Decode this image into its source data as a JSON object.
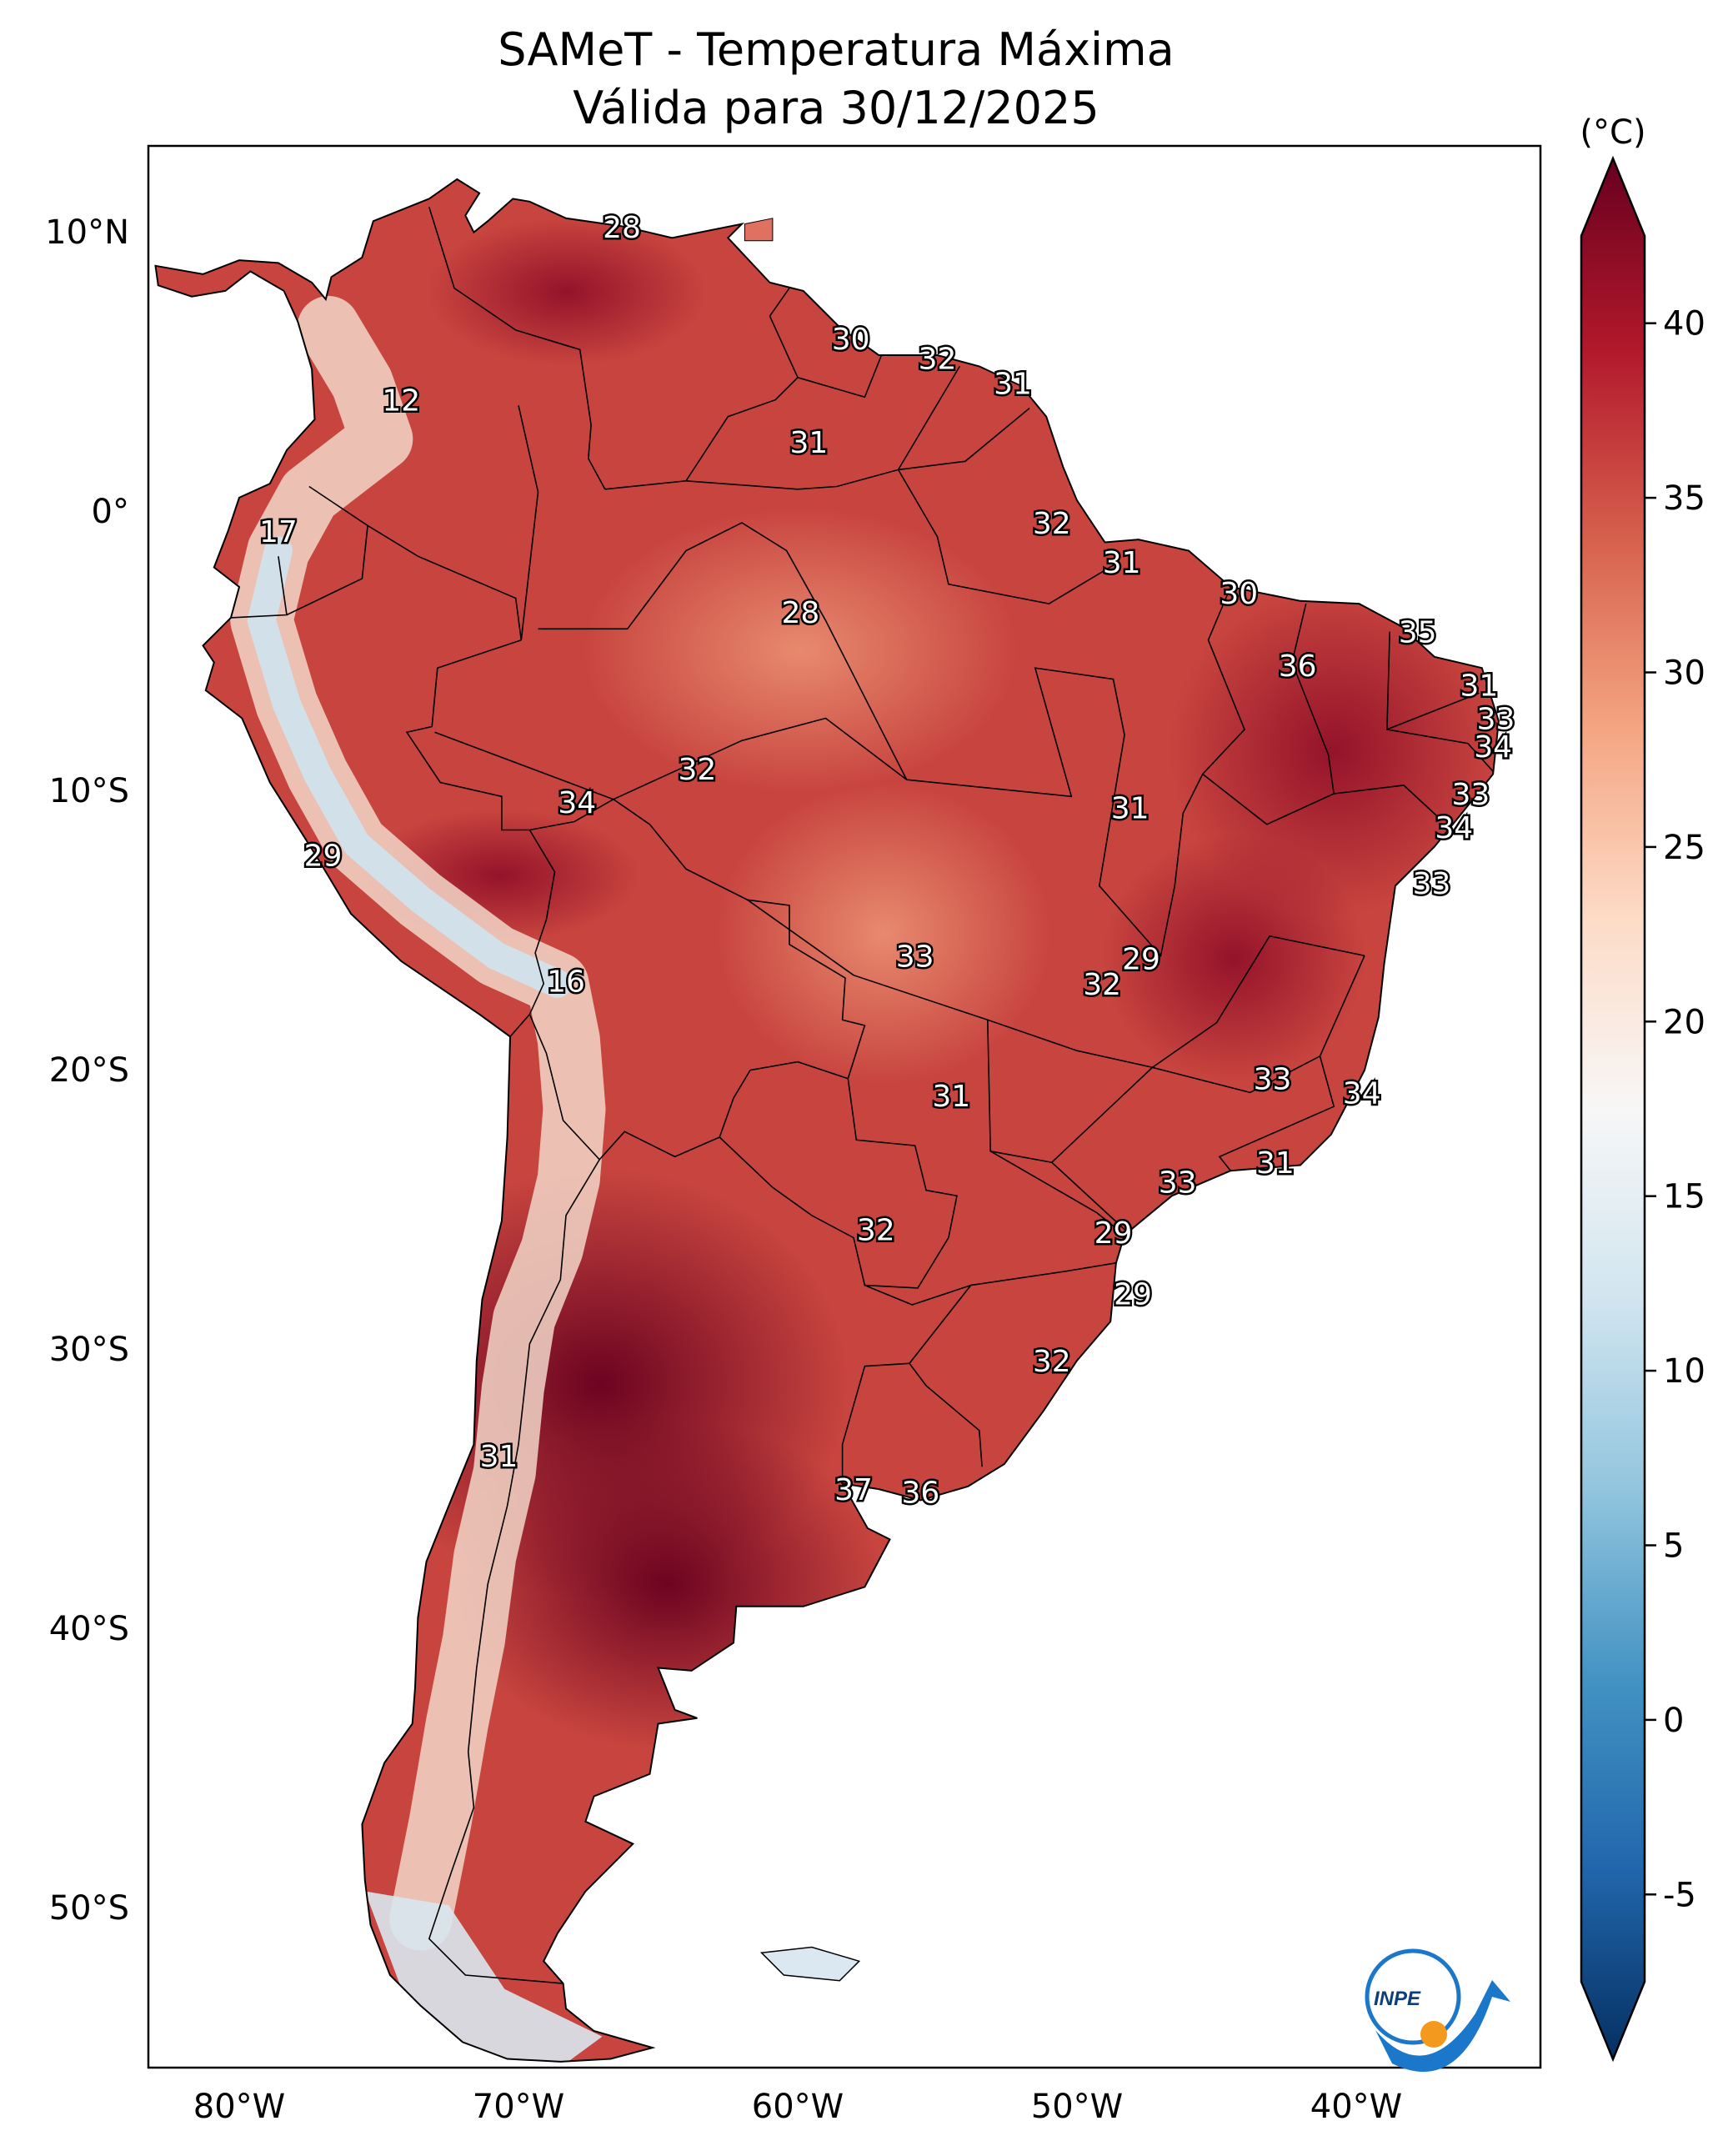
{
  "title": {
    "line1": "SAMeT - Temperatura Máxima",
    "line2": "Válida para 30/12/2025"
  },
  "colorbar": {
    "unit": "(°C)",
    "ticks": [
      "40",
      "35",
      "30",
      "25",
      "20",
      "15",
      "10",
      "5",
      "0",
      "-5"
    ],
    "colors": [
      "#053061",
      "#2166ac",
      "#4393c3",
      "#92c5de",
      "#d1e5f0",
      "#f7f7f7",
      "#fddbc7",
      "#f4a582",
      "#d6604d",
      "#b2182b",
      "#67001f"
    ]
  },
  "axes": {
    "lat": [
      "10°N",
      "0°",
      "10°S",
      "20°S",
      "30°S",
      "40°S",
      "50°S"
    ],
    "lon": [
      "80°W",
      "70°W",
      "60°W",
      "50°W",
      "40°W"
    ]
  },
  "labels": [
    {
      "t": "28",
      "lon": -66.3,
      "lat": 10.6
    },
    {
      "t": "12",
      "lon": -74.2,
      "lat": 4.4
    },
    {
      "t": "30",
      "lon": -58.1,
      "lat": 6.6
    },
    {
      "t": "32",
      "lon": -55.0,
      "lat": 5.9
    },
    {
      "t": "31",
      "lon": -52.3,
      "lat": 5.0
    },
    {
      "t": "31",
      "lon": -59.6,
      "lat": 2.9
    },
    {
      "t": "17",
      "lon": -78.6,
      "lat": -0.3
    },
    {
      "t": "32",
      "lon": -50.9,
      "lat": 0.0
    },
    {
      "t": "31",
      "lon": -48.4,
      "lat": -1.4
    },
    {
      "t": "30",
      "lon": -44.2,
      "lat": -2.5
    },
    {
      "t": "28",
      "lon": -59.9,
      "lat": -3.2
    },
    {
      "t": "35",
      "lon": -37.8,
      "lat": -3.9
    },
    {
      "t": "36",
      "lon": -42.1,
      "lat": -5.1
    },
    {
      "t": "31",
      "lon": -35.6,
      "lat": -5.8
    },
    {
      "t": "33",
      "lon": -35.0,
      "lat": -7.0
    },
    {
      "t": "34",
      "lon": -35.1,
      "lat": -8.0
    },
    {
      "t": "32",
      "lon": -63.6,
      "lat": -8.8
    },
    {
      "t": "34",
      "lon": -67.9,
      "lat": -10.0
    },
    {
      "t": "31",
      "lon": -48.1,
      "lat": -10.2
    },
    {
      "t": "33",
      "lon": -35.9,
      "lat": -9.7
    },
    {
      "t": "34",
      "lon": -36.5,
      "lat": -10.9
    },
    {
      "t": "29",
      "lon": -77.0,
      "lat": -11.9
    },
    {
      "t": "33",
      "lon": -37.3,
      "lat": -12.9
    },
    {
      "t": "33",
      "lon": -55.8,
      "lat": -15.5
    },
    {
      "t": "29",
      "lon": -47.7,
      "lat": -15.6
    },
    {
      "t": "16",
      "lon": -68.3,
      "lat": -16.4
    },
    {
      "t": "32",
      "lon": -49.1,
      "lat": -16.5
    },
    {
      "t": "33",
      "lon": -43.0,
      "lat": -19.9
    },
    {
      "t": "34",
      "lon": -39.8,
      "lat": -20.4
    },
    {
      "t": "31",
      "lon": -54.5,
      "lat": -20.5
    },
    {
      "t": "31",
      "lon": -42.9,
      "lat": -22.9
    },
    {
      "t": "33",
      "lon": -46.4,
      "lat": -23.6
    },
    {
      "t": "32",
      "lon": -57.2,
      "lat": -25.3
    },
    {
      "t": "29",
      "lon": -48.7,
      "lat": -25.4
    },
    {
      "t": "29",
      "lon": -48.0,
      "lat": -27.6
    },
    {
      "t": "32",
      "lon": -50.9,
      "lat": -30.0
    },
    {
      "t": "31",
      "lon": -70.7,
      "lat": -33.4
    },
    {
      "t": "37",
      "lon": -58.0,
      "lat": -34.6
    },
    {
      "t": "36",
      "lon": -55.6,
      "lat": -34.7
    }
  ]
}
